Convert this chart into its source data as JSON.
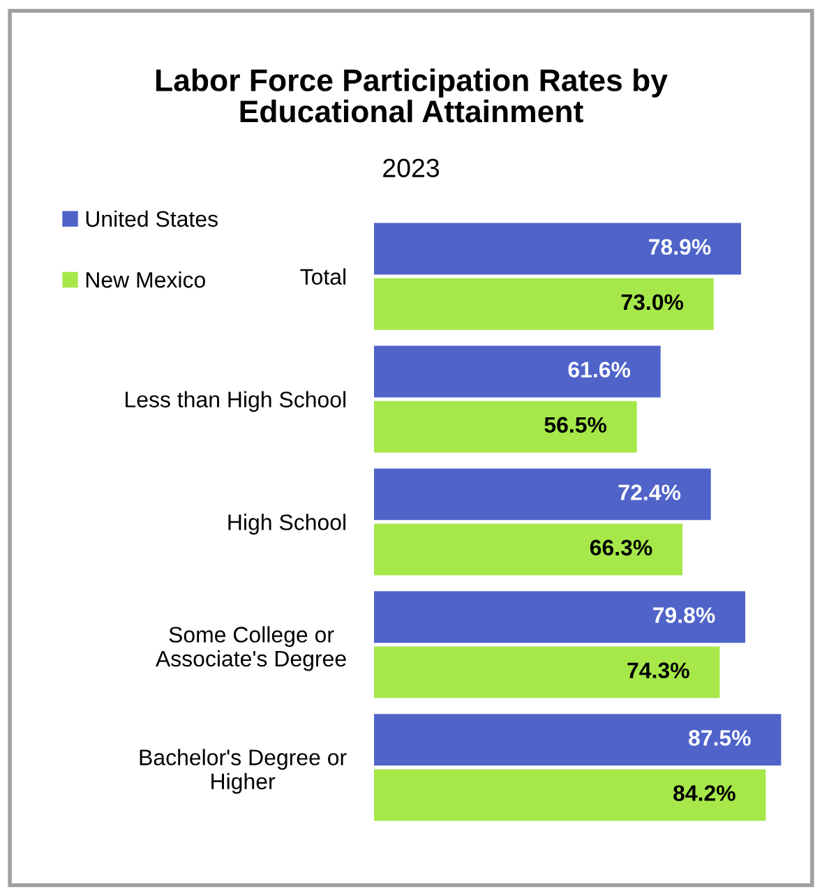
{
  "chart_data": {
    "type": "bar",
    "orientation": "horizontal",
    "title": "Labor Force Participation Rates by\nEducational Attainment",
    "subtitle": "2023",
    "categories": [
      "Total",
      "Less than High School",
      "High School",
      "Some College or\nAssociate's Degree",
      "Bachelor's Degree or\nHigher"
    ],
    "series": [
      {
        "name": "United States",
        "color": "#4f63c9",
        "values": [
          78.9,
          61.6,
          72.4,
          79.8,
          87.5
        ],
        "value_labels": [
          "78.9%",
          "61.6%",
          "72.4%",
          "79.8%",
          "87.5%"
        ]
      },
      {
        "name": "New Mexico",
        "color": "#a6e84a",
        "values": [
          73.0,
          56.5,
          66.3,
          74.3,
          84.2
        ],
        "value_labels": [
          "73.0%",
          "56.5%",
          "66.3%",
          "74.3%",
          "84.2%"
        ]
      }
    ],
    "tick_labels": "y",
    "grid": false,
    "legend": "top left"
  }
}
